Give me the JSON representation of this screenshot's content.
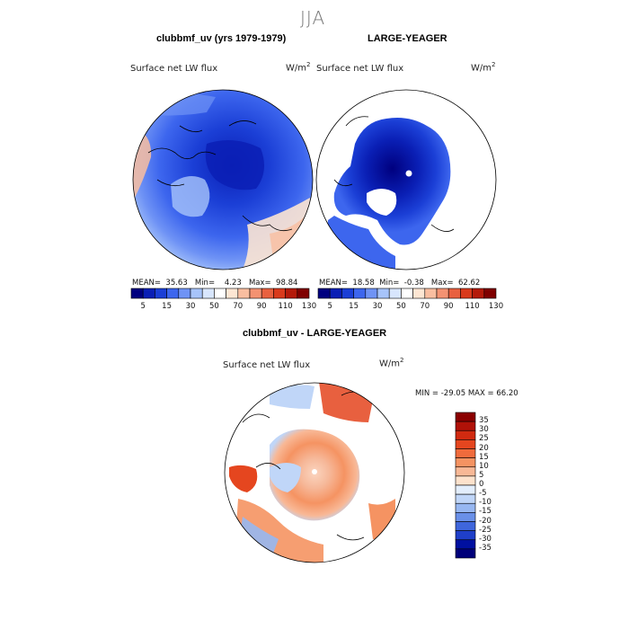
{
  "figure": {
    "title": "JJA",
    "units": "W/m",
    "units_sup": "2"
  },
  "colors": {
    "blue_scale": [
      "#00007f",
      "#0a1fb5",
      "#1b3fd6",
      "#3d66ee",
      "#6f93f5",
      "#a7c4fa",
      "#d8e6fd",
      "#ffffff",
      "#fde6d3",
      "#f9bea0",
      "#f39272",
      "#e8603f",
      "#d93a1c",
      "#b41a0a",
      "#7f0000"
    ]
  },
  "chart_data": [
    {
      "type": "heatmap",
      "projection": "north polar stereographic",
      "title": "clubbmf_uv (yrs 1979-1979)",
      "subtitle": "Surface net LW flux",
      "units": "W/m2",
      "stats": {
        "mean_label": "MEAN=",
        "mean": "35.63",
        "min_label": "Min=",
        "min": "4.23",
        "max_label": "Max=",
        "max": "98.84"
      },
      "colorbar_levels": [
        0,
        5,
        10,
        15,
        20,
        30,
        40,
        50,
        60,
        70,
        80,
        90,
        100,
        110,
        120,
        130,
        140
      ],
      "colorbar_labels": [
        "5",
        "15",
        "30",
        "50",
        "70",
        "90",
        "110",
        "130"
      ]
    },
    {
      "type": "heatmap",
      "projection": "north polar stereographic",
      "title": "LARGE-YEAGER",
      "subtitle": "Surface net LW flux",
      "units": "W/m2",
      "stats": {
        "mean_label": "MEAN=",
        "mean": "18.58",
        "min_label": "Min=",
        "min": "-0.38",
        "max_label": "Max=",
        "max": "62.62"
      },
      "colorbar_levels": [
        0,
        5,
        10,
        15,
        20,
        30,
        40,
        50,
        60,
        70,
        80,
        90,
        100,
        110,
        120,
        130,
        140
      ],
      "colorbar_labels": [
        "5",
        "15",
        "30",
        "50",
        "70",
        "90",
        "110",
        "130"
      ]
    },
    {
      "type": "heatmap",
      "projection": "north polar stereographic",
      "title": "clubbmf_uv - LARGE-YEAGER",
      "subtitle": "Surface net LW flux",
      "units": "W/m2",
      "stats_text": "MIN = -29.05  MAX =   66.20",
      "colorbar_labels": [
        "35",
        "30",
        "25",
        "20",
        "15",
        "10",
        "5",
        "0",
        "-5",
        "-10",
        "-15",
        "-20",
        "-25",
        "-30",
        "-35"
      ],
      "colorbar_colors": [
        "#8b0000",
        "#b01208",
        "#d12a10",
        "#e5461f",
        "#f06b3c",
        "#f59362",
        "#f8b896",
        "#fde2cc",
        "#e3eefc",
        "#c0d6f8",
        "#97b7f1",
        "#6a90e8",
        "#3f66dc",
        "#1f3fc9",
        "#0010a0",
        "#00007a"
      ]
    }
  ]
}
